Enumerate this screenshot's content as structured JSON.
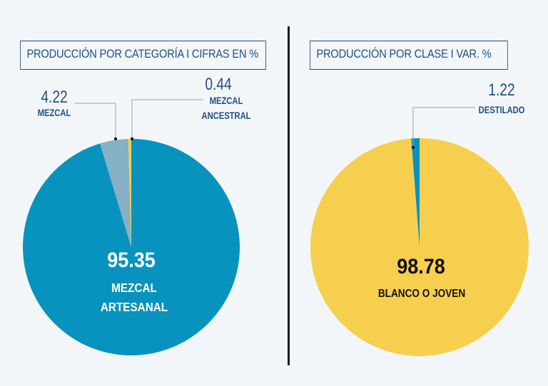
{
  "colors": {
    "background": "#f3f6f8",
    "title": "#1f5084",
    "leader": "#9aa3ab"
  },
  "chart_data": [
    {
      "type": "pie",
      "title": "PRODUCCIÓN POR CATEGORÍA I CIFRAS EN %",
      "slices": [
        {
          "label": "MEZCAL ARTESANAL",
          "value": 95.35,
          "value_text": "95.35",
          "label_lines": [
            "MEZCAL",
            "ARTESANAL"
          ],
          "color": "#0893bf"
        },
        {
          "label": "MEZCAL",
          "value": 4.22,
          "value_text": "4.22",
          "label_lines": [
            "MEZCAL"
          ],
          "color": "#86b1c4"
        },
        {
          "label": "MEZCAL ANCESTRAL",
          "value": 0.44,
          "value_text": "0.44",
          "label_lines": [
            "MEZCAL",
            "ANCESTRAL"
          ],
          "color": "#f7cf4f"
        }
      ]
    },
    {
      "type": "pie",
      "title": "PRODUCCIÓN POR CLASE I VAR. %",
      "slices": [
        {
          "label": "BLANCO O JOVEN",
          "value": 98.78,
          "value_text": "98.78",
          "label_lines": [
            "BLANCO O JOVEN"
          ],
          "color": "#f7cf4f"
        },
        {
          "label": "DESTILADO",
          "value": 1.22,
          "value_text": "1.22",
          "label_lines": [
            "DESTILADO"
          ],
          "color": "#0893bf"
        }
      ]
    }
  ]
}
